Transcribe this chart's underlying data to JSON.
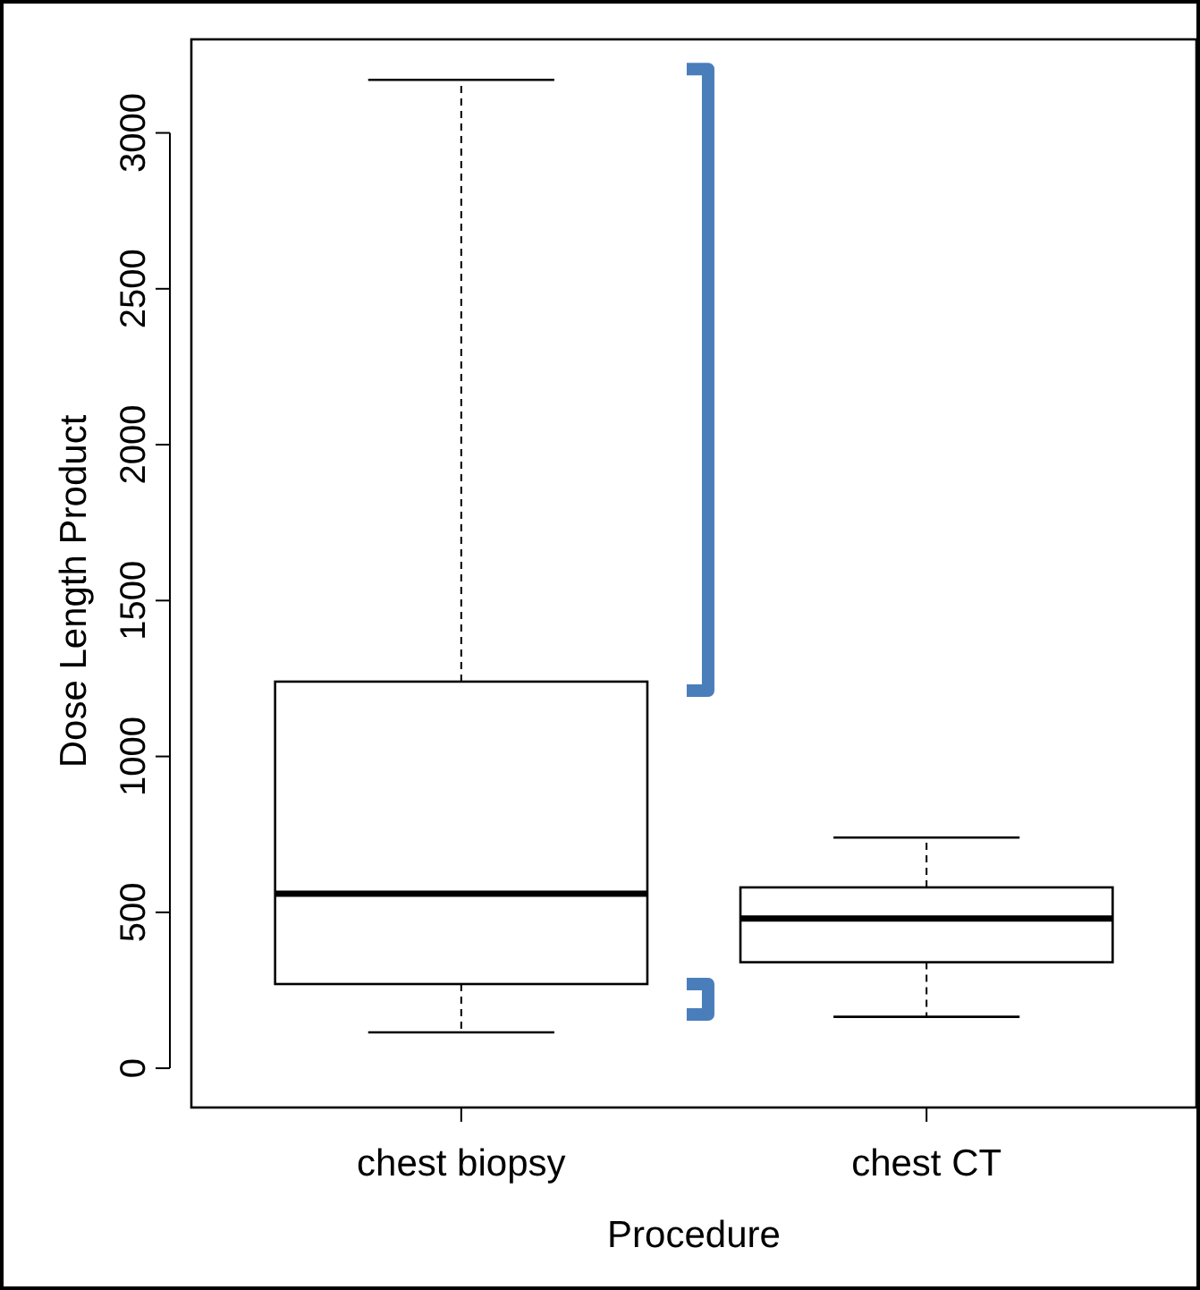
{
  "chart_data": {
    "type": "box",
    "xlabel": "Procedure",
    "ylabel": "Dose Length Product",
    "categories": [
      "chest biopsy",
      "chest CT"
    ],
    "boxes": [
      {
        "low": 115,
        "q1": 270,
        "median": 560,
        "q3": 1240,
        "high": 3170
      },
      {
        "low": 165,
        "q1": 340,
        "median": 480,
        "q3": 580,
        "high": 740
      }
    ],
    "ylim": [
      -126,
      3300
    ],
    "yticks": [
      0,
      500,
      1000,
      1500,
      2000,
      2500,
      3000
    ]
  }
}
